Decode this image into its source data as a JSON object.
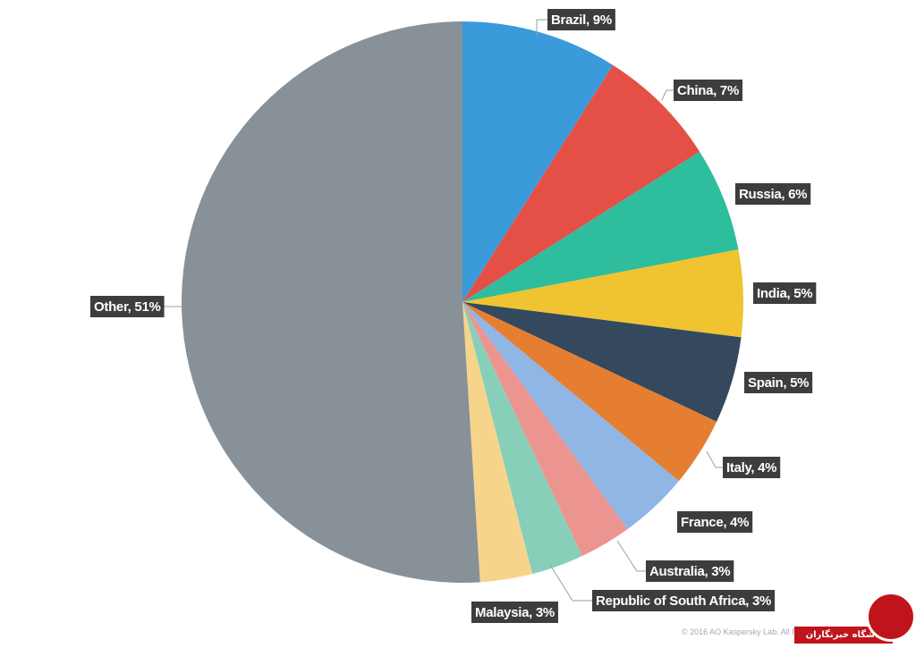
{
  "chart_data": {
    "type": "pie",
    "title": "",
    "start_angle_deg": 0,
    "direction": "clockwise",
    "slices": [
      {
        "label": "Brazil, 9%",
        "name": "Brazil",
        "value": 9,
        "color": "#3b9ad9"
      },
      {
        "label": "China, 7%",
        "name": "China",
        "value": 7,
        "color": "#e45046"
      },
      {
        "label": "Russia, 6%",
        "name": "Russia",
        "value": 6,
        "color": "#2ebd9d"
      },
      {
        "label": "India, 5%",
        "name": "India",
        "value": 5,
        "color": "#f0c330"
      },
      {
        "label": "Spain, 5%",
        "name": "Spain",
        "value": 5,
        "color": "#34495e"
      },
      {
        "label": "Italy, 4%",
        "name": "Italy",
        "value": 4,
        "color": "#e57e31"
      },
      {
        "label": "France, 4%",
        "name": "France",
        "value": 4,
        "color": "#8fb6e4"
      },
      {
        "label": "Australia, 3%",
        "name": "Australia",
        "value": 3,
        "color": "#ec9590"
      },
      {
        "label": "Republic of South Africa, 3%",
        "name": "Republic of South Africa",
        "value": 3,
        "color": "#87cfb9"
      },
      {
        "label": "Malaysia, 3%",
        "name": "Malaysia",
        "value": 3,
        "color": "#f6d58b"
      },
      {
        "label": "Other, 51%",
        "name": "Other",
        "value": 51,
        "color": "#889098"
      }
    ],
    "label_background": "#3d3d3d",
    "label_text_color": "#ffffff"
  },
  "footer": {
    "copyright": "© 2016 AO Kaspersky Lab. All Ri"
  },
  "watermark": {
    "banner_text": "باشگاه خبرنگاران",
    "color": "#c0141c"
  }
}
